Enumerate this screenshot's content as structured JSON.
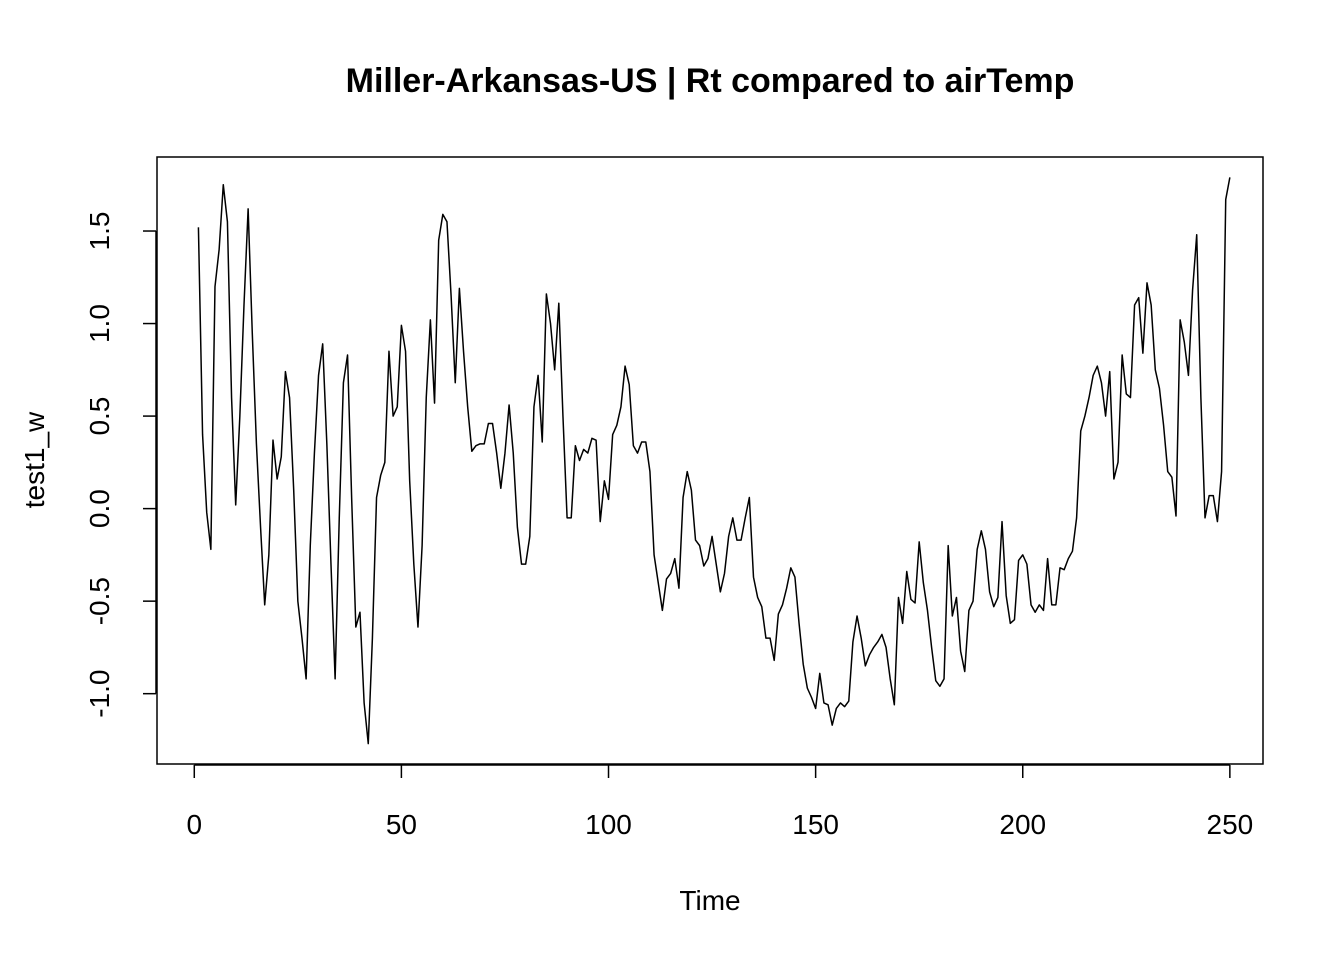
{
  "chart_data": {
    "type": "line",
    "title": "Miller-Arkansas-US | Rt compared to airTemp",
    "xlabel": "Time",
    "ylabel": "test1_w",
    "xlim": [
      -9,
      258
    ],
    "ylim": [
      -1.38,
      1.9
    ],
    "xticks": [
      0,
      50,
      100,
      150,
      200,
      250
    ],
    "yticks": [
      -1.0,
      -0.5,
      0.0,
      0.5,
      1.0,
      1.5
    ],
    "xtick_labels": [
      "0",
      "50",
      "100",
      "150",
      "200",
      "250"
    ],
    "ytick_labels": [
      "-1.0",
      "-0.5",
      "0.0",
      "0.5",
      "1.0",
      "1.5"
    ],
    "grid": false,
    "series": [
      {
        "name": "test1_w",
        "color": "#000000",
        "x_start": 1,
        "values": [
          1.52,
          0.4,
          -0.02,
          -0.22,
          1.2,
          1.4,
          1.75,
          1.55,
          0.6,
          0.02,
          0.5,
          1.1,
          1.62,
          0.95,
          0.35,
          -0.1,
          -0.52,
          -0.25,
          0.37,
          0.16,
          0.28,
          0.74,
          0.6,
          0.1,
          -0.5,
          -0.7,
          -0.92,
          -0.2,
          0.3,
          0.72,
          0.89,
          0.35,
          -0.3,
          -0.92,
          -0.05,
          0.68,
          0.83,
          0.05,
          -0.64,
          -0.56,
          -1.05,
          -1.27,
          -0.7,
          0.06,
          0.18,
          0.25,
          0.85,
          0.5,
          0.55,
          0.99,
          0.85,
          0.15,
          -0.3,
          -0.64,
          -0.2,
          0.6,
          1.02,
          0.57,
          1.45,
          1.59,
          1.55,
          1.15,
          0.68,
          1.19,
          0.85,
          0.55,
          0.31,
          0.34,
          0.35,
          0.35,
          0.46,
          0.46,
          0.3,
          0.11,
          0.3,
          0.56,
          0.3,
          -0.1,
          -0.3,
          -0.3,
          -0.15,
          0.55,
          0.72,
          0.36,
          1.16,
          1.0,
          0.75,
          1.11,
          0.5,
          -0.05,
          -0.05,
          0.34,
          0.26,
          0.32,
          0.3,
          0.38,
          0.37,
          -0.07,
          0.15,
          0.05,
          0.4,
          0.45,
          0.55,
          0.77,
          0.67,
          0.34,
          0.3,
          0.36,
          0.36,
          0.2,
          -0.25,
          -0.4,
          -0.55,
          -0.38,
          -0.35,
          -0.27,
          -0.43,
          0.06,
          0.2,
          0.1,
          -0.17,
          -0.2,
          -0.31,
          -0.27,
          -0.15,
          -0.3,
          -0.45,
          -0.35,
          -0.15,
          -0.05,
          -0.17,
          -0.17,
          -0.05,
          0.06,
          -0.37,
          -0.48,
          -0.53,
          -0.7,
          -0.7,
          -0.82,
          -0.57,
          -0.52,
          -0.43,
          -0.32,
          -0.37,
          -0.62,
          -0.84,
          -0.97,
          -1.02,
          -1.08,
          -0.89,
          -1.05,
          -1.06,
          -1.17,
          -1.08,
          -1.05,
          -1.07,
          -1.04,
          -0.72,
          -0.58,
          -0.7,
          -0.85,
          -0.79,
          -0.75,
          -0.72,
          -0.68,
          -0.75,
          -0.92,
          -1.06,
          -0.48,
          -0.62,
          -0.34,
          -0.49,
          -0.51,
          -0.18,
          -0.4,
          -0.55,
          -0.75,
          -0.93,
          -0.96,
          -0.92,
          -0.2,
          -0.58,
          -0.48,
          -0.77,
          -0.88,
          -0.55,
          -0.5,
          -0.22,
          -0.12,
          -0.22,
          -0.45,
          -0.53,
          -0.48,
          -0.07,
          -0.47,
          -0.62,
          -0.6,
          -0.28,
          -0.25,
          -0.3,
          -0.52,
          -0.56,
          -0.52,
          -0.55,
          -0.27,
          -0.52,
          -0.52,
          -0.32,
          -0.33,
          -0.27,
          -0.23,
          -0.05,
          0.42,
          0.5,
          0.6,
          0.72,
          0.77,
          0.68,
          0.5,
          0.74,
          0.16,
          0.25,
          0.83,
          0.62,
          0.6,
          1.1,
          1.14,
          0.84,
          1.22,
          1.1,
          0.75,
          0.65,
          0.45,
          0.2,
          0.17,
          -0.04,
          1.02,
          0.9,
          0.72,
          1.18,
          1.48,
          0.6,
          -0.05,
          0.07,
          0.07,
          -0.07,
          0.2,
          1.67,
          1.79
        ]
      }
    ]
  }
}
